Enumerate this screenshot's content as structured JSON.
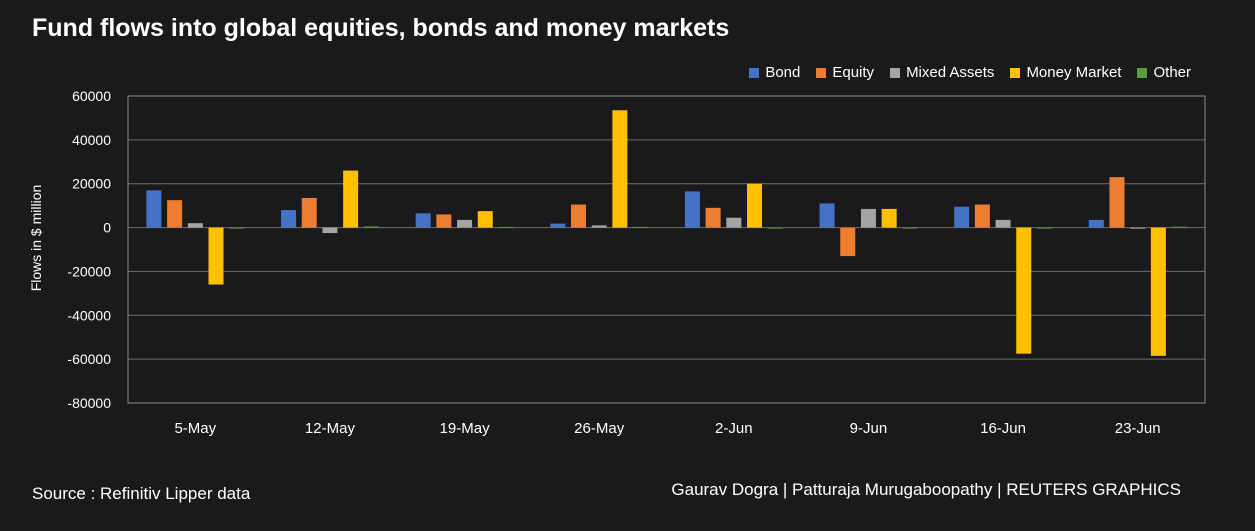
{
  "title": "Fund flows into global equities, bonds and money markets",
  "source": "Source : Refinitiv Lipper data",
  "credit": "Gaurav Dogra | Patturaja Murugaboopathy | REUTERS GRAPHICS",
  "chart_data": {
    "type": "bar",
    "title": "Fund flows into global equities, bonds and money markets",
    "ylabel": "Flows in $ million",
    "xlabel": "",
    "ylim": [
      -80000,
      60000
    ],
    "yticks": [
      "60000",
      "40000",
      "20000",
      "0",
      "-20000",
      "-40000",
      "-60000",
      "-80000"
    ],
    "ytick_values": [
      60000,
      40000,
      20000,
      0,
      -20000,
      -40000,
      -60000,
      -80000
    ],
    "grid": true,
    "legend_position": "top-right",
    "categories": [
      "5-May",
      "12-May",
      "19-May",
      "26-May",
      "2-Jun",
      "9-Jun",
      "16-Jun",
      "23-Jun"
    ],
    "series": [
      {
        "name": "Bond",
        "color": "#4472c4",
        "values": [
          17000,
          8000,
          6500,
          1800,
          16500,
          11000,
          9500,
          3500
        ]
      },
      {
        "name": "Equity",
        "color": "#ed7d31",
        "values": [
          12500,
          13500,
          6000,
          10500,
          9000,
          -13000,
          10500,
          23000
        ]
      },
      {
        "name": "Mixed Assets",
        "color": "#a5a5a5",
        "values": [
          2000,
          -2500,
          3500,
          1000,
          4500,
          8500,
          3500,
          -500
        ]
      },
      {
        "name": "Money Market",
        "color": "#ffc000",
        "values": [
          -26000,
          26000,
          7500,
          53500,
          20000,
          8500,
          -57500,
          -58500
        ]
      },
      {
        "name": "Other",
        "color": "#5b9b3a",
        "values": [
          -300,
          500,
          300,
          300,
          -300,
          -200,
          -400,
          400
        ]
      }
    ]
  }
}
